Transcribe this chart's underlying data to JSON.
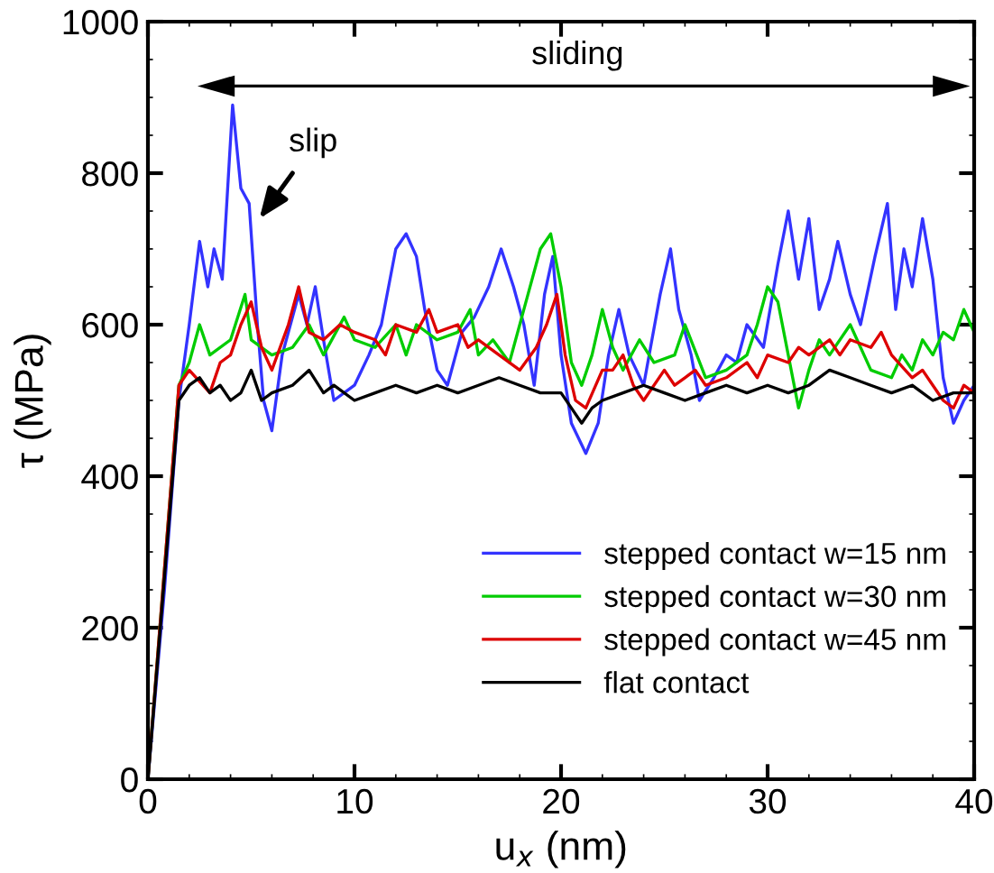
{
  "chart_data": {
    "type": "line",
    "xlabel": "u$_{x}$ (nm)",
    "ylabel": "τ (MPa)",
    "xlim": [
      0,
      40
    ],
    "ylim": [
      0,
      1000
    ],
    "xticks": [
      0,
      10,
      20,
      30,
      40
    ],
    "yticks": [
      0,
      200,
      400,
      600,
      800,
      1000
    ],
    "legend": "bottom right",
    "grid": false,
    "marker": "none",
    "line_style": "solid",
    "annotations": [
      "sliding",
      "slip"
    ],
    "series": [
      {
        "name": "stepped contact w=15 nm",
        "color": "#3333ff",
        "x": [
          0,
          0.8,
          1.5,
          2,
          2.5,
          2.9,
          3.2,
          3.6,
          4.1,
          4.5,
          4.9,
          5.3,
          5.6,
          6,
          6.5,
          7.3,
          7.7,
          8.1,
          8.5,
          9,
          10,
          10.7,
          11.3,
          12,
          12.5,
          13,
          13.4,
          14,
          14.5,
          15.2,
          15.8,
          16.5,
          17.1,
          17.7,
          18.2,
          18.7,
          19.2,
          19.6,
          20,
          20.5,
          21.2,
          21.8,
          22.3,
          22.8,
          23.3,
          24,
          24.8,
          25.3,
          25.7,
          26.3,
          26.7,
          27.4,
          28,
          28.5,
          29,
          29.8,
          30.5,
          31,
          31.5,
          32,
          32.5,
          33,
          33.4,
          34,
          34.5,
          35.2,
          35.8,
          36.2,
          36.6,
          37,
          37.5,
          38,
          38.5,
          39,
          39.5,
          40
        ],
        "values": [
          0,
          250,
          500,
          600,
          710,
          650,
          700,
          660,
          890,
          780,
          760,
          600,
          500,
          460,
          560,
          640,
          600,
          650,
          580,
          500,
          520,
          560,
          600,
          700,
          720,
          690,
          620,
          540,
          520,
          590,
          610,
          650,
          700,
          650,
          600,
          520,
          640,
          690,
          560,
          470,
          430,
          470,
          560,
          620,
          560,
          520,
          640,
          700,
          620,
          560,
          500,
          530,
          560,
          550,
          600,
          570,
          680,
          750,
          660,
          740,
          620,
          660,
          710,
          640,
          600,
          690,
          760,
          620,
          700,
          650,
          740,
          660,
          530,
          470,
          500,
          520
        ]
      },
      {
        "name": "stepped contact w=30 nm",
        "color": "#00cc00",
        "x": [
          0,
          1.5,
          2,
          2.5,
          3,
          4,
          4.7,
          5,
          6,
          7,
          7.8,
          8.5,
          9.5,
          10,
          11,
          12,
          12.5,
          13,
          14,
          15,
          15.6,
          16,
          16.7,
          17.5,
          18.4,
          19,
          19.5,
          20,
          20.5,
          21,
          21.5,
          22,
          22.5,
          23,
          23.8,
          24.5,
          25.5,
          26,
          27,
          28,
          29,
          29.5,
          30,
          30.5,
          31,
          31.5,
          32,
          32.5,
          33,
          34,
          35,
          36,
          36.5,
          37,
          37.5,
          38,
          38.5,
          39,
          39.5,
          40
        ],
        "values": [
          0,
          520,
          550,
          600,
          560,
          580,
          640,
          580,
          560,
          570,
          600,
          560,
          610,
          580,
          570,
          600,
          560,
          600,
          580,
          590,
          620,
          560,
          580,
          550,
          640,
          700,
          720,
          650,
          550,
          520,
          560,
          620,
          570,
          540,
          580,
          550,
          560,
          600,
          530,
          540,
          560,
          600,
          650,
          630,
          560,
          490,
          540,
          580,
          560,
          600,
          540,
          530,
          560,
          540,
          580,
          560,
          590,
          580,
          620,
          590
        ]
      },
      {
        "name": "stepped contact w=45 nm",
        "color": "#dd0000",
        "x": [
          0,
          1.5,
          2,
          3,
          3.5,
          4,
          4.5,
          5,
          5.5,
          6,
          6.8,
          7.3,
          7.8,
          8.5,
          9.3,
          10,
          11,
          11.5,
          12,
          13,
          13.6,
          14,
          15,
          15.5,
          16,
          17,
          18,
          18.8,
          19.3,
          19.8,
          20.2,
          20.7,
          21.2,
          22,
          22.5,
          23,
          23.5,
          24,
          25,
          25.5,
          26,
          26.5,
          27,
          28,
          29,
          29.5,
          30,
          31,
          31.5,
          32,
          33,
          33.5,
          34,
          35,
          35.5,
          36,
          37,
          37.5,
          38,
          38.5,
          39,
          39.5,
          40
        ],
        "values": [
          0,
          520,
          540,
          510,
          550,
          560,
          600,
          630,
          570,
          540,
          600,
          650,
          590,
          580,
          600,
          590,
          580,
          560,
          600,
          590,
          620,
          590,
          600,
          570,
          580,
          560,
          540,
          570,
          600,
          640,
          560,
          500,
          490,
          540,
          540,
          560,
          520,
          500,
          540,
          520,
          530,
          540,
          520,
          530,
          550,
          530,
          560,
          550,
          570,
          560,
          580,
          560,
          580,
          570,
          590,
          560,
          530,
          540,
          520,
          500,
          490,
          520,
          510
        ]
      },
      {
        "name": "flat contact",
        "color": "#000000",
        "x": [
          0,
          1.5,
          2,
          2.5,
          3,
          3.5,
          4,
          4.5,
          5,
          5.5,
          6,
          7,
          7.8,
          8.5,
          9,
          10,
          11,
          12,
          13,
          14,
          15,
          16,
          17,
          18,
          19,
          20,
          20.5,
          21,
          21.5,
          22,
          23,
          24,
          25,
          26,
          27,
          28,
          29,
          30,
          31,
          32,
          33,
          34,
          35,
          36,
          37,
          38,
          39,
          40
        ],
        "values": [
          0,
          500,
          520,
          530,
          510,
          520,
          500,
          510,
          540,
          500,
          510,
          520,
          540,
          510,
          520,
          500,
          510,
          520,
          510,
          520,
          510,
          520,
          530,
          520,
          510,
          510,
          490,
          470,
          490,
          500,
          510,
          520,
          510,
          500,
          510,
          520,
          510,
          520,
          510,
          520,
          540,
          530,
          520,
          510,
          520,
          500,
          510,
          510
        ]
      }
    ]
  }
}
